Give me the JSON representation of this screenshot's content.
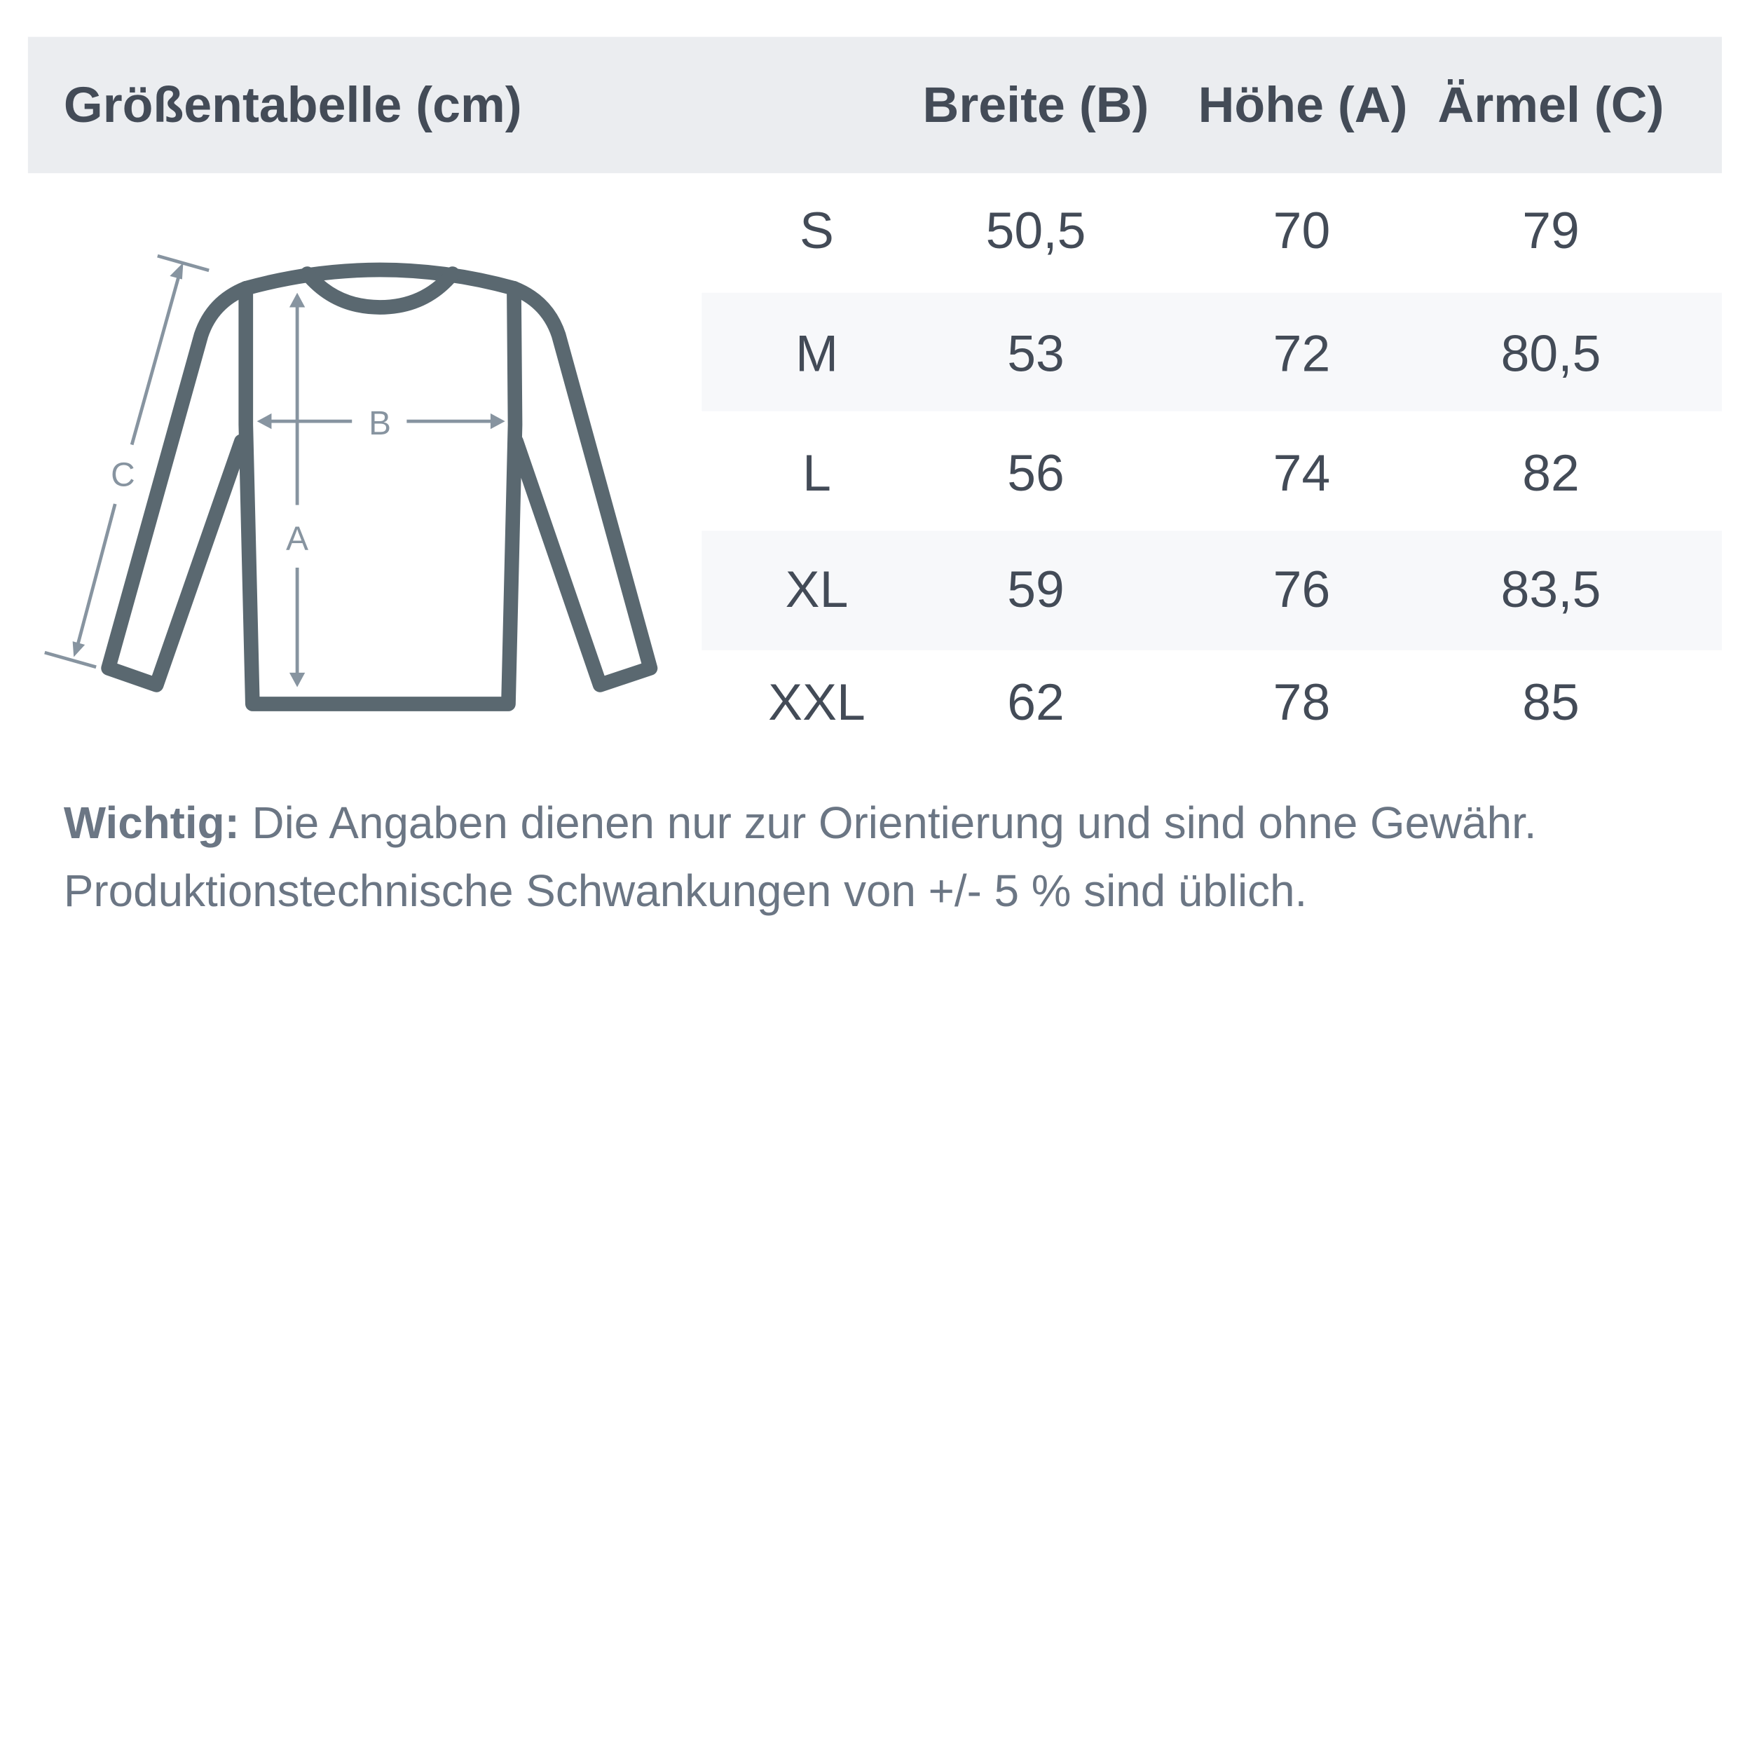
{
  "header": {
    "title": "Größentabelle (cm)",
    "columns": [
      "Breite (B)",
      "Höhe (A)",
      "Ärmel (C)"
    ]
  },
  "rows": [
    {
      "size": "S",
      "breite": "50,5",
      "hoehe": "70",
      "aermel": "79"
    },
    {
      "size": "M",
      "breite": "53",
      "hoehe": "72",
      "aermel": "80,5"
    },
    {
      "size": "L",
      "breite": "56",
      "hoehe": "74",
      "aermel": "82"
    },
    {
      "size": "XL",
      "breite": "59",
      "hoehe": "76",
      "aermel": "83,5"
    },
    {
      "size": "XXL",
      "breite": "62",
      "hoehe": "78",
      "aermel": "85"
    }
  ],
  "diagram": {
    "label_a": "A",
    "label_b": "B",
    "label_c": "C",
    "icon": "long-sleeve-shirt-icon"
  },
  "note": {
    "bold": "Wichtig:",
    "line1": " Die Angaben dienen nur zur Orientierung und sind ohne Gewähr.",
    "line2": "Produktionstechnische Schwankungen von +/- 5 % sind üblich."
  },
  "colors": {
    "header_bg": "#ebedf0",
    "text": "#434b57",
    "shirt": "#5a6870",
    "arrows": "#8794a0",
    "stripe": "#f7f8fa"
  }
}
